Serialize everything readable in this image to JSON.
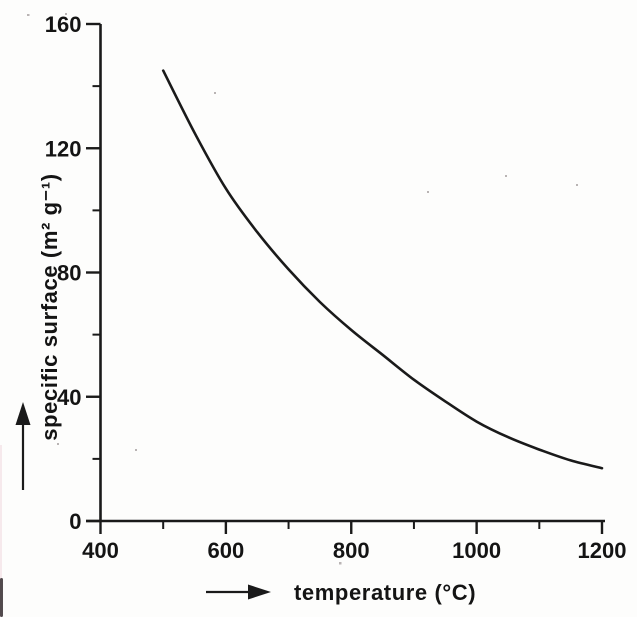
{
  "chart_data": {
    "type": "line",
    "title": "",
    "xlabel": "temperature (°C)",
    "ylabel": "specific surface (m² g⁻¹)",
    "x": [
      500,
      550,
      600,
      650,
      700,
      750,
      800,
      850,
      900,
      950,
      1000,
      1050,
      1100,
      1150,
      1200
    ],
    "y": [
      145,
      125,
      107,
      93,
      81,
      70.5,
      61.5,
      53.5,
      45.5,
      38.5,
      32,
      27,
      23,
      19.5,
      17
    ],
    "xlim": [
      400,
      1200
    ],
    "ylim": [
      0,
      160
    ],
    "x_major_ticks": [
      400,
      600,
      800,
      1000,
      1200
    ],
    "x_minor_ticks": [
      500,
      700,
      900,
      1100
    ],
    "y_major_ticks": [
      0,
      40,
      80,
      120,
      160
    ],
    "y_minor_ticks": [
      20,
      60,
      100,
      140
    ],
    "grid": false,
    "legend_position": "none",
    "curve_color": "#1a1a1a",
    "background_color": "#fdfdfc",
    "icons": {
      "y_axis_arrow": "up-arrow",
      "x_axis_arrow": "right-arrow"
    }
  }
}
